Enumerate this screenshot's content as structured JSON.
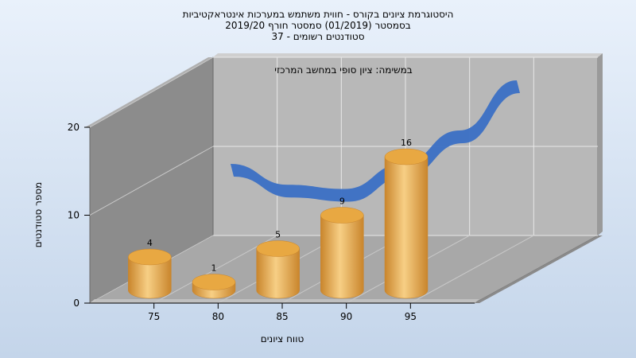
{
  "chart_data": {
    "type": "bar",
    "title_lines": [
      "היסטוגרמת ציונים בקורס - חווית משתמש במערכות אינטראקטיביות",
      "בסמסטר   (01/2019)  סמסטר חורף 2019/20",
      "סטודנטים רשומים - 37"
    ],
    "subtitle": "במשימה: ציון סופי במחשב המרכזי",
    "xlabel": "טווח ציונים",
    "ylabel": "מספר סטודנטים",
    "categories": [
      "75",
      "80",
      "85",
      "90",
      "95"
    ],
    "values": [
      4,
      1,
      5,
      9,
      16
    ],
    "data_labels": [
      "4",
      "1",
      "5",
      "9",
      "16"
    ],
    "trend_curve": [
      8,
      5.5,
      5,
      8,
      12,
      18
    ],
    "y_ticks": [
      "0",
      "10",
      "20"
    ],
    "ylim": [
      0,
      20
    ],
    "grid": true,
    "style": "3d-cylinders",
    "colors": {
      "bar_body": "#f0b55a",
      "bar_dark": "#c9852c",
      "bar_top": "#e8a842",
      "curve": "#3a6fc4",
      "wall_back": "#b8b8b8",
      "wall_side": "#8c8c8c",
      "floor": "#a8a8a8"
    }
  }
}
